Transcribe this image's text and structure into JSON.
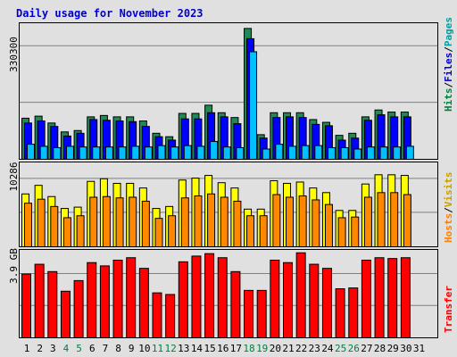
{
  "title": "Daily usage for November 2023",
  "colors": {
    "background": "#e0e0e0",
    "hits": "#228855",
    "files": "#0000ff",
    "pages": "#00c0ff",
    "visits": "#ffff00",
    "hosts": "#ff8800",
    "transfer": "#ff0000",
    "label_blue": "#0000cc",
    "label_green": "#008040",
    "label_teal": "#00a0a0",
    "label_yellow": "#c8a000",
    "label_orange": "#ff8000",
    "label_red": "#ff0000"
  },
  "chart_data": [
    {
      "type": "bar",
      "name": "hits-files-pages",
      "y_tick_label": "330300",
      "y_tick_value": 330300,
      "ylim": [
        0,
        396000
      ],
      "grid": true,
      "legend_text": {
        "hits": "Hits",
        "files": "Files",
        "pages": "Pages",
        "separator": "/"
      },
      "categories": [
        "1",
        "2",
        "3",
        "4",
        "5",
        "6",
        "7",
        "8",
        "9",
        "10",
        "11",
        "12",
        "13",
        "14",
        "15",
        "16",
        "17",
        "18",
        "19",
        "20",
        "21",
        "22",
        "23",
        "24",
        "25",
        "26",
        "27",
        "28",
        "29",
        "30",
        "31"
      ],
      "weekend_days": [
        "4",
        "5",
        "11",
        "12",
        "18",
        "19",
        "25",
        "26"
      ],
      "series": [
        {
          "name": "Hits",
          "key": "hits",
          "values": [
            120000,
            126000,
            106000,
            80000,
            84000,
            124000,
            128000,
            124000,
            124000,
            112000,
            76000,
            66000,
            134000,
            134000,
            158000,
            136000,
            122000,
            382000,
            72000,
            136000,
            136000,
            136000,
            116000,
            108000,
            70000,
            76000,
            124000,
            144000,
            138000,
            138000,
            0
          ]
        },
        {
          "name": "Files",
          "key": "files",
          "values": [
            106000,
            112000,
            96000,
            68000,
            76000,
            116000,
            114000,
            112000,
            110000,
            96000,
            66000,
            56000,
            118000,
            118000,
            136000,
            124000,
            104000,
            352000,
            62000,
            122000,
            124000,
            122000,
            102000,
            98000,
            56000,
            62000,
            114000,
            130000,
            124000,
            124000,
            0
          ]
        },
        {
          "name": "Pages",
          "key": "pages",
          "values": [
            44000,
            38000,
            34000,
            38000,
            36000,
            36000,
            36000,
            36000,
            38000,
            36000,
            40000,
            36000,
            40000,
            38000,
            52000,
            36000,
            34000,
            314000,
            30000,
            44000,
            38000,
            40000,
            40000,
            34000,
            34000,
            30000,
            36000,
            36000,
            36000,
            38000,
            0
          ]
        }
      ]
    },
    {
      "type": "bar",
      "name": "visits-hosts",
      "y_tick_label": "10286",
      "y_tick_value": 10286,
      "ylim": [
        0,
        12700
      ],
      "grid": true,
      "legend_text": {
        "hosts": "Hosts",
        "visits": "Visits",
        "separator": "/"
      },
      "categories": [
        "1",
        "2",
        "3",
        "4",
        "5",
        "6",
        "7",
        "8",
        "9",
        "10",
        "11",
        "12",
        "13",
        "14",
        "15",
        "16",
        "17",
        "18",
        "19",
        "20",
        "21",
        "22",
        "23",
        "24",
        "25",
        "26",
        "27",
        "28",
        "29",
        "30",
        "31"
      ],
      "series": [
        {
          "name": "Visits",
          "key": "visits",
          "values": [
            8000,
            9300,
            7600,
            5800,
            6000,
            9900,
            10300,
            9600,
            9600,
            8900,
            5800,
            6100,
            10100,
            10400,
            10800,
            9700,
            8900,
            5700,
            5700,
            10000,
            9600,
            9800,
            8900,
            8200,
            5500,
            5500,
            9500,
            10900,
            10900,
            10800,
            0
          ]
        },
        {
          "name": "Hosts",
          "key": "hosts",
          "values": [
            6600,
            7200,
            6100,
            4400,
            4700,
            7500,
            7600,
            7400,
            7500,
            6900,
            4300,
            4700,
            7400,
            7700,
            8000,
            7500,
            6900,
            4700,
            4700,
            7900,
            7500,
            7700,
            7100,
            6400,
            4400,
            4500,
            7500,
            8200,
            8200,
            7900,
            0
          ]
        }
      ]
    },
    {
      "type": "bar",
      "name": "transfer",
      "y_tick_label": "3.9 GB",
      "y_tick_value": 3.9,
      "ylim": [
        0,
        5.35
      ],
      "grid": true,
      "legend_text": {
        "transfer": "Transfer"
      },
      "categories": [
        "1",
        "2",
        "3",
        "4",
        "5",
        "6",
        "7",
        "8",
        "9",
        "10",
        "11",
        "12",
        "13",
        "14",
        "15",
        "16",
        "17",
        "18",
        "19",
        "20",
        "21",
        "22",
        "23",
        "24",
        "25",
        "26",
        "27",
        "28",
        "29",
        "30",
        "31"
      ],
      "series": [
        {
          "name": "Transfer",
          "key": "transfer",
          "values": [
            3.9,
            4.5,
            4.05,
            2.85,
            3.5,
            4.6,
            4.4,
            4.75,
            4.9,
            4.25,
            2.75,
            2.65,
            4.65,
            5.0,
            5.15,
            4.9,
            4.05,
            2.9,
            2.9,
            4.75,
            4.6,
            5.2,
            4.5,
            4.25,
            3.0,
            3.05,
            4.75,
            4.9,
            4.85,
            4.9,
            0
          ]
        }
      ]
    }
  ]
}
